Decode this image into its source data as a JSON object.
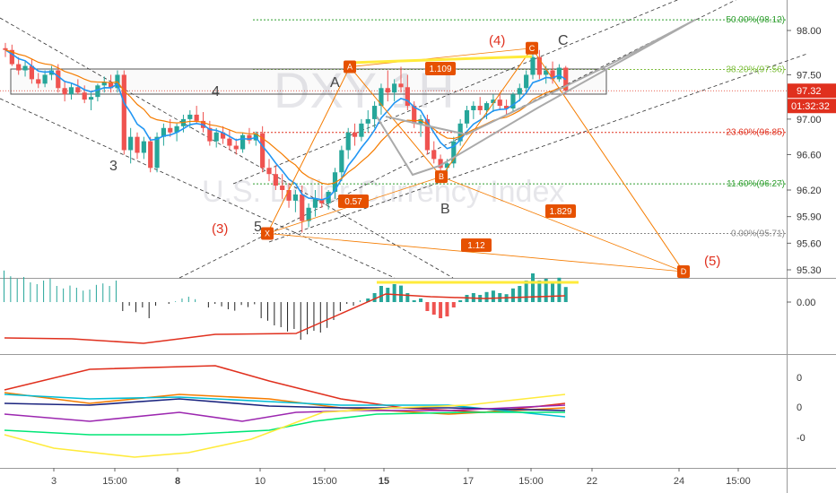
{
  "watermark": {
    "symbol": "DXY",
    "tf": "1H",
    "name": "U.S. Dollar Currency Index"
  },
  "price_axis": {
    "ticks": [
      "98.00",
      "97.50",
      "97.00",
      "96.60",
      "96.20",
      "95.90",
      "95.60",
      "95.30"
    ],
    "tick_values": [
      98.0,
      97.5,
      97.0,
      96.6,
      96.2,
      95.9,
      95.6,
      95.3
    ],
    "current_price": "97.32",
    "current_value": 97.32,
    "countdown": "01:32:32"
  },
  "time_axis": {
    "labels": [
      {
        "text": "3",
        "bold": false
      },
      {
        "text": "15:00",
        "bold": false
      },
      {
        "text": "8",
        "bold": true
      },
      {
        "text": "10",
        "bold": false
      },
      {
        "text": "15:00",
        "bold": false
      },
      {
        "text": "15",
        "bold": true
      },
      {
        "text": "17",
        "bold": false
      },
      {
        "text": "15:00",
        "bold": false
      },
      {
        "text": "22",
        "bold": false
      },
      {
        "text": "24",
        "bold": false
      },
      {
        "text": "15:00",
        "bold": false
      }
    ]
  },
  "fib_levels": [
    {
      "label": "50.00%(98.12)",
      "value": 98.12,
      "color": "#2e9e2e"
    },
    {
      "label": "38.20%(97.56)",
      "value": 97.56,
      "color": "#7fbf3f"
    },
    {
      "label": "23.60%(96.85)",
      "value": 96.85,
      "color": "#e0301e"
    },
    {
      "label": "11.60%(96.27)",
      "value": 96.27,
      "color": "#2e9e2e"
    },
    {
      "label": "0.00%(95.71)",
      "value": 95.71,
      "color": "#888888"
    }
  ],
  "harmonic_points": [
    {
      "label": "X",
      "value": 95.71
    },
    {
      "label": "A",
      "value": 97.59
    },
    {
      "label": "B",
      "value": 96.35
    },
    {
      "label": "C",
      "value": 97.8
    },
    {
      "label": "D",
      "value": 95.28
    }
  ],
  "harmonic_ratios": [
    "1.109",
    "0.57",
    "1.829",
    "1.12"
  ],
  "wave_labels": {
    "black": [
      "4",
      "3",
      "5",
      "A",
      "B",
      "C"
    ],
    "red": [
      "(3)",
      "(4)",
      "(5)"
    ]
  },
  "macd_panel": {
    "ticks": [
      "0.00"
    ]
  },
  "lower_panel": {
    "ticks": [
      "0",
      "0",
      "-0"
    ]
  },
  "colors": {
    "up": "#26a69a",
    "down": "#ef5350",
    "ma_fast": "#2196f3",
    "ma_slow": "#f57c00",
    "pattern": "#f57c00",
    "channel": "#333333",
    "yellow": "#ffeb3b",
    "price_line": "#e0301e"
  },
  "chart_data": {
    "type": "candlestick",
    "instrument": "DXY",
    "ylim": [
      95.2,
      98.25
    ],
    "candles": [
      [
        97.8,
        97.86,
        97.7,
        97.78
      ],
      [
        97.78,
        97.84,
        97.6,
        97.62
      ],
      [
        97.62,
        97.7,
        97.5,
        97.55
      ],
      [
        97.55,
        97.65,
        97.48,
        97.6
      ],
      [
        97.6,
        97.68,
        97.4,
        97.45
      ],
      [
        97.45,
        97.52,
        97.35,
        97.4
      ],
      [
        97.4,
        97.55,
        97.36,
        97.5
      ],
      [
        97.5,
        97.6,
        97.44,
        97.55
      ],
      [
        97.55,
        97.62,
        97.3,
        97.35
      ],
      [
        97.35,
        97.42,
        97.2,
        97.28
      ],
      [
        97.28,
        97.4,
        97.22,
        97.36
      ],
      [
        97.36,
        97.45,
        97.28,
        97.3
      ],
      [
        97.3,
        97.38,
        97.18,
        97.22
      ],
      [
        97.22,
        97.3,
        97.1,
        97.25
      ],
      [
        97.25,
        97.4,
        97.2,
        97.38
      ],
      [
        97.38,
        97.48,
        97.3,
        97.42
      ],
      [
        97.42,
        97.5,
        97.3,
        97.35
      ],
      [
        97.35,
        97.55,
        97.3,
        97.5
      ],
      [
        97.5,
        97.55,
        96.6,
        96.65
      ],
      [
        96.65,
        96.9,
        96.5,
        96.8
      ],
      [
        96.8,
        96.85,
        96.55,
        96.62
      ],
      [
        96.62,
        96.8,
        96.55,
        96.75
      ],
      [
        96.75,
        96.8,
        96.4,
        96.45
      ],
      [
        96.45,
        96.85,
        96.4,
        96.8
      ],
      [
        96.8,
        96.95,
        96.7,
        96.9
      ],
      [
        96.9,
        97.0,
        96.8,
        96.85
      ],
      [
        96.85,
        96.95,
        96.75,
        96.92
      ],
      [
        96.92,
        97.05,
        96.85,
        97.0
      ],
      [
        97.0,
        97.1,
        96.9,
        97.05
      ],
      [
        97.05,
        97.15,
        96.95,
        96.98
      ],
      [
        96.98,
        97.08,
        96.85,
        96.9
      ],
      [
        96.9,
        96.98,
        96.7,
        96.75
      ],
      [
        96.75,
        96.9,
        96.68,
        96.85
      ],
      [
        96.85,
        96.92,
        96.72,
        96.78
      ],
      [
        96.78,
        96.88,
        96.65,
        96.7
      ],
      [
        96.7,
        96.78,
        96.6,
        96.66
      ],
      [
        96.66,
        96.85,
        96.62,
        96.82
      ],
      [
        96.82,
        96.9,
        96.72,
        96.76
      ],
      [
        96.76,
        96.86,
        96.7,
        96.84
      ],
      [
        96.84,
        96.92,
        96.4,
        96.45
      ],
      [
        96.45,
        96.55,
        96.3,
        96.38
      ],
      [
        96.38,
        96.48,
        96.2,
        96.25
      ],
      [
        96.25,
        96.38,
        96.1,
        96.2
      ],
      [
        96.2,
        96.28,
        96.0,
        96.08
      ],
      [
        96.08,
        96.2,
        95.95,
        96.15
      ],
      [
        96.15,
        96.25,
        95.72,
        95.85
      ],
      [
        95.85,
        96.05,
        95.78,
        96.0
      ],
      [
        96.0,
        96.2,
        95.9,
        96.1
      ],
      [
        96.1,
        96.25,
        96.0,
        96.05
      ],
      [
        96.05,
        96.2,
        95.98,
        96.18
      ],
      [
        96.18,
        96.45,
        96.1,
        96.4
      ],
      [
        96.4,
        96.7,
        96.3,
        96.65
      ],
      [
        96.65,
        96.9,
        96.55,
        96.85
      ],
      [
        96.85,
        96.95,
        96.7,
        96.8
      ],
      [
        96.8,
        97.0,
        96.75,
        96.95
      ],
      [
        96.95,
        97.1,
        96.85,
        97.0
      ],
      [
        97.0,
        97.2,
        96.9,
        97.15
      ],
      [
        97.15,
        97.4,
        97.05,
        97.35
      ],
      [
        97.35,
        97.55,
        97.2,
        97.3
      ],
      [
        97.3,
        97.45,
        97.2,
        97.4
      ],
      [
        97.4,
        97.59,
        97.3,
        97.36
      ],
      [
        97.36,
        97.5,
        97.1,
        97.15
      ],
      [
        97.15,
        97.2,
        96.9,
        96.95
      ],
      [
        96.95,
        97.05,
        96.8,
        97.0
      ],
      [
        97.0,
        97.05,
        96.6,
        96.65
      ],
      [
        96.65,
        96.75,
        96.5,
        96.55
      ],
      [
        96.55,
        96.6,
        96.4,
        96.45
      ],
      [
        96.45,
        96.55,
        96.35,
        96.5
      ],
      [
        96.5,
        96.8,
        96.45,
        96.75
      ],
      [
        96.75,
        97.0,
        96.7,
        96.95
      ],
      [
        96.95,
        97.15,
        96.9,
        97.1
      ],
      [
        97.1,
        97.2,
        97.0,
        97.15
      ],
      [
        97.15,
        97.25,
        97.05,
        97.1
      ],
      [
        97.1,
        97.2,
        97.0,
        97.18
      ],
      [
        97.18,
        97.28,
        97.08,
        97.22
      ],
      [
        97.22,
        97.3,
        97.1,
        97.15
      ],
      [
        97.15,
        97.22,
        97.05,
        97.12
      ],
      [
        97.12,
        97.3,
        97.08,
        97.28
      ],
      [
        97.28,
        97.4,
        97.2,
        97.35
      ],
      [
        97.35,
        97.55,
        97.3,
        97.5
      ],
      [
        97.5,
        97.8,
        97.45,
        97.7
      ],
      [
        97.7,
        97.78,
        97.45,
        97.5
      ],
      [
        97.5,
        97.6,
        97.4,
        97.55
      ],
      [
        97.55,
        97.65,
        97.4,
        97.45
      ],
      [
        97.45,
        97.62,
        97.42,
        97.58
      ],
      [
        97.58,
        97.6,
        97.28,
        97.32
      ]
    ]
  }
}
